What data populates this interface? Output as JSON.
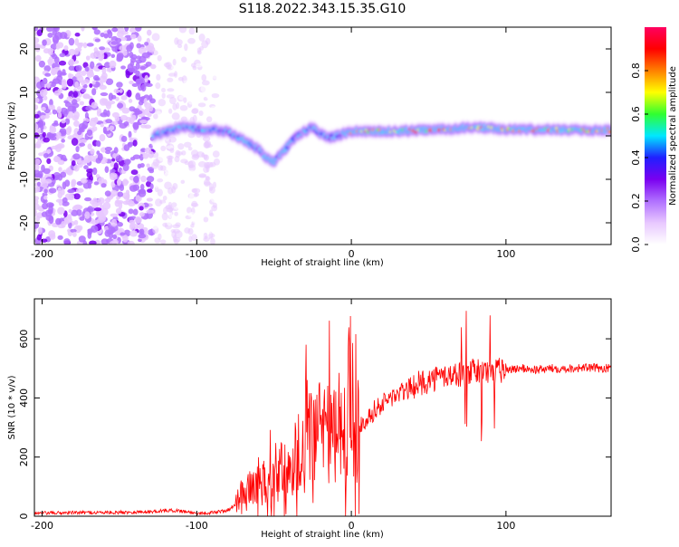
{
  "figure": {
    "title": "S118.2022.343.15.35.G10"
  },
  "colors": {
    "colormap": [
      "#ffffff",
      "#e8c8ff",
      "#b070ff",
      "#7a00f0",
      "#2020ff",
      "#00e8ff",
      "#30ff30",
      "#ffff00",
      "#ff8000",
      "#ff0000",
      "#ff0060"
    ],
    "snr_line": "#ff0000"
  },
  "chart_data": [
    {
      "type": "heatmap",
      "xlabel": "Height of straight line (km)",
      "ylabel": "Frequency (Hz)",
      "xlim": [
        -205,
        168
      ],
      "ylim": [
        -25,
        25
      ],
      "xticks": [
        -200,
        -100,
        0,
        100
      ],
      "yticks": [
        -20,
        -10,
        0,
        10,
        20
      ],
      "noise_region_x": [
        -205,
        -87
      ],
      "signal_start_x": -128,
      "frequency_track": {
        "x": [
          -128,
          -110,
          -95,
          -80,
          -70,
          -60,
          -55,
          -50,
          -45,
          -40,
          -35,
          -30,
          -25,
          -20,
          -15,
          -10,
          -5,
          0,
          20,
          40,
          60,
          80,
          100,
          120,
          140,
          168
        ],
        "freq": [
          0,
          2,
          1.5,
          1,
          -1,
          -3,
          -5,
          -6,
          -4,
          -2,
          0,
          1,
          2,
          0.5,
          -0.5,
          0,
          0.5,
          1,
          1,
          1.2,
          1.5,
          2,
          1.5,
          1.5,
          1.3,
          1.3
        ]
      },
      "colorbar": {
        "label": "Normalized spectral amplitude",
        "ticks": [
          "0.0",
          "0.2",
          "0.4",
          "0.6",
          "0.8"
        ],
        "range": [
          0,
          1
        ]
      }
    },
    {
      "type": "line",
      "xlabel": "Height of straight line (km)",
      "ylabel": "SNR (10 * v/v)",
      "xlim": [
        -205,
        168
      ],
      "ylim": [
        0,
        735
      ],
      "xticks": [
        -200,
        -100,
        0,
        100
      ],
      "yticks": [
        0,
        200,
        400,
        600
      ],
      "series": [
        {
          "x": [
            -205,
            -180,
            -150,
            -130,
            -120,
            -110,
            -100,
            -90,
            -80,
            -75,
            -70,
            -65,
            -60,
            -55,
            -50,
            -45,
            -40,
            -35,
            -30,
            -25,
            -20,
            -15,
            -10,
            -5,
            0,
            5,
            10,
            15,
            20,
            25,
            30,
            40,
            50,
            60,
            70,
            80,
            90,
            100,
            110,
            120,
            130,
            140,
            150,
            168
          ],
          "y": [
            10,
            12,
            13,
            15,
            20,
            18,
            10,
            12,
            20,
            40,
            70,
            100,
            120,
            100,
            130,
            160,
            180,
            220,
            230,
            270,
            280,
            270,
            260,
            280,
            290,
            310,
            330,
            360,
            380,
            400,
            410,
            440,
            460,
            475,
            480,
            490,
            490,
            495,
            500,
            495,
            500,
            500,
            502,
            500
          ]
        }
      ]
    }
  ]
}
